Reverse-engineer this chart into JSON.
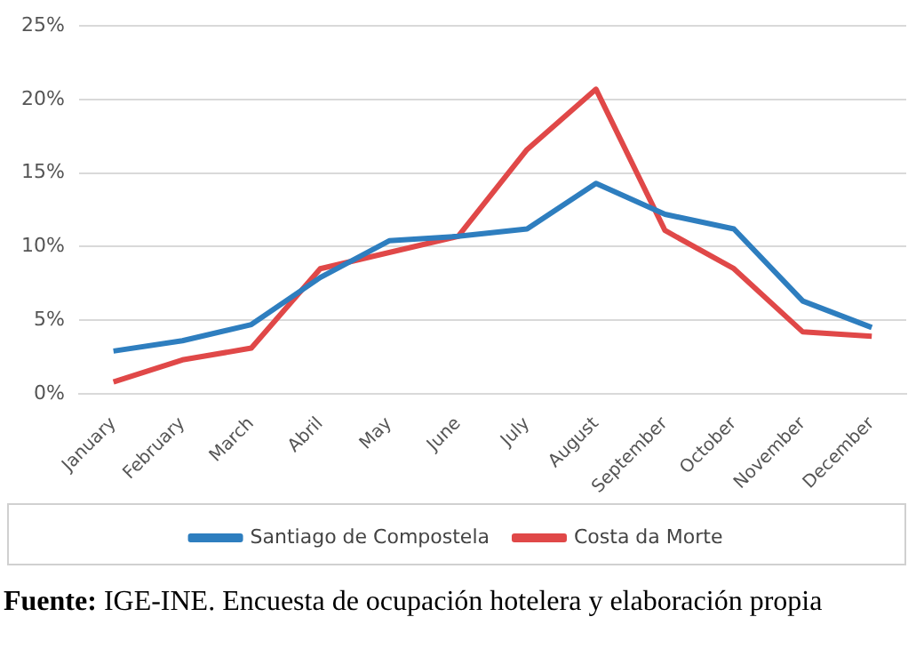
{
  "chart_data": {
    "type": "line",
    "categories": [
      "January",
      "February",
      "March",
      "Abril",
      "May",
      "June",
      "July",
      "August",
      "September",
      "October",
      "November",
      "December"
    ],
    "series": [
      {
        "name": "Santiago de Compostela",
        "color": "#2e7ebf",
        "values": [
          2.9,
          3.6,
          4.7,
          7.9,
          10.4,
          10.7,
          11.2,
          14.3,
          12.2,
          11.2,
          6.3,
          4.5
        ]
      },
      {
        "name": "Costa da Morte",
        "color": "#e04848",
        "values": [
          0.8,
          2.3,
          3.1,
          8.5,
          9.6,
          10.7,
          16.6,
          20.7,
          11.1,
          8.5,
          4.2,
          3.9
        ]
      }
    ],
    "ylim": [
      0,
      25
    ],
    "yticks": [
      {
        "value": 0,
        "label": "0%"
      },
      {
        "value": 5,
        "label": "5%"
      },
      {
        "value": 10,
        "label": "10%"
      },
      {
        "value": 15,
        "label": "15%"
      },
      {
        "value": 20,
        "label": "20%"
      },
      {
        "value": 25,
        "label": "25%"
      }
    ],
    "grid": "y",
    "legend": "bottom",
    "marker": "none",
    "line_style": "solid",
    "annotations": [
      "Fuente: IGE-INE. Encuesta de ocupación hotelera y elaboración propia"
    ]
  }
}
